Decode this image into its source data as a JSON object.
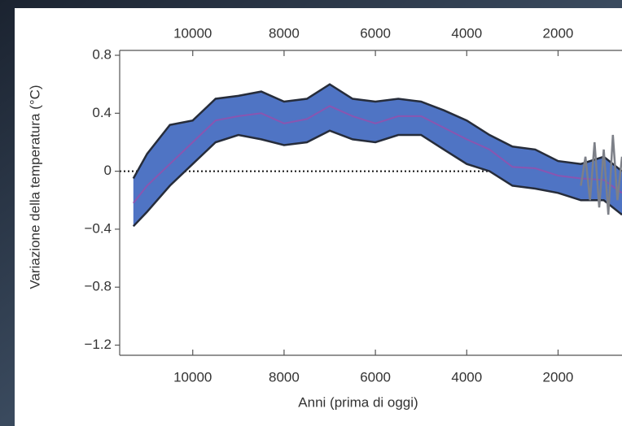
{
  "chart_data": {
    "type": "band-line",
    "xlabel": "Anni (prima di oggi)",
    "ylabel": "Variazione della temperatura (°C)",
    "xlim": [
      11600,
      600
    ],
    "xticks": [
      10000,
      8000,
      6000,
      4000,
      2000
    ],
    "ylim": [
      -1.27,
      0.8
    ],
    "yticks": [
      0.8,
      0.4,
      0,
      {
        "value": -0.4,
        "label": "−0.4"
      },
      {
        "value": -0.8,
        "label": "−0.8"
      },
      {
        "value": -1.2,
        "label": "−1.2"
      }
    ],
    "reference_line": 0,
    "x": [
      11300,
      11000,
      10500,
      10000,
      9500,
      9000,
      8500,
      8000,
      7500,
      7000,
      6500,
      6000,
      5500,
      5000,
      4500,
      4000,
      3500,
      3000,
      2500,
      2000,
      1500,
      1000,
      600
    ],
    "band": {
      "color": "#4f74c4",
      "edge_color": "#262c3a",
      "upper": [
        -0.05,
        0.12,
        0.32,
        0.35,
        0.5,
        0.52,
        0.55,
        0.48,
        0.5,
        0.6,
        0.5,
        0.48,
        0.5,
        0.48,
        0.42,
        0.35,
        0.25,
        0.17,
        0.15,
        0.07,
        0.05,
        0.1,
        0.0
      ],
      "lower": [
        -0.38,
        -0.28,
        -0.1,
        0.05,
        0.2,
        0.25,
        0.22,
        0.18,
        0.2,
        0.28,
        0.22,
        0.2,
        0.25,
        0.25,
        0.15,
        0.05,
        0.0,
        -0.1,
        -0.12,
        -0.15,
        -0.2,
        -0.2,
        -0.3
      ]
    },
    "series": [
      {
        "color": "#8a55b0",
        "values": [
          -0.22,
          -0.1,
          0.05,
          0.2,
          0.35,
          0.38,
          0.4,
          0.33,
          0.36,
          0.45,
          0.38,
          0.33,
          0.38,
          0.38,
          0.3,
          0.22,
          0.15,
          0.03,
          0.02,
          -0.03,
          -0.05,
          -0.06,
          -0.15
        ]
      }
    ],
    "instrumental": {
      "color": "#7d8088",
      "x": [
        1500,
        1400,
        1300,
        1200,
        1100,
        1000,
        900,
        800,
        700,
        600
      ],
      "values": [
        -0.1,
        0.1,
        -0.2,
        0.2,
        -0.25,
        0.15,
        -0.3,
        0.25,
        -0.2,
        0.1
      ]
    }
  }
}
